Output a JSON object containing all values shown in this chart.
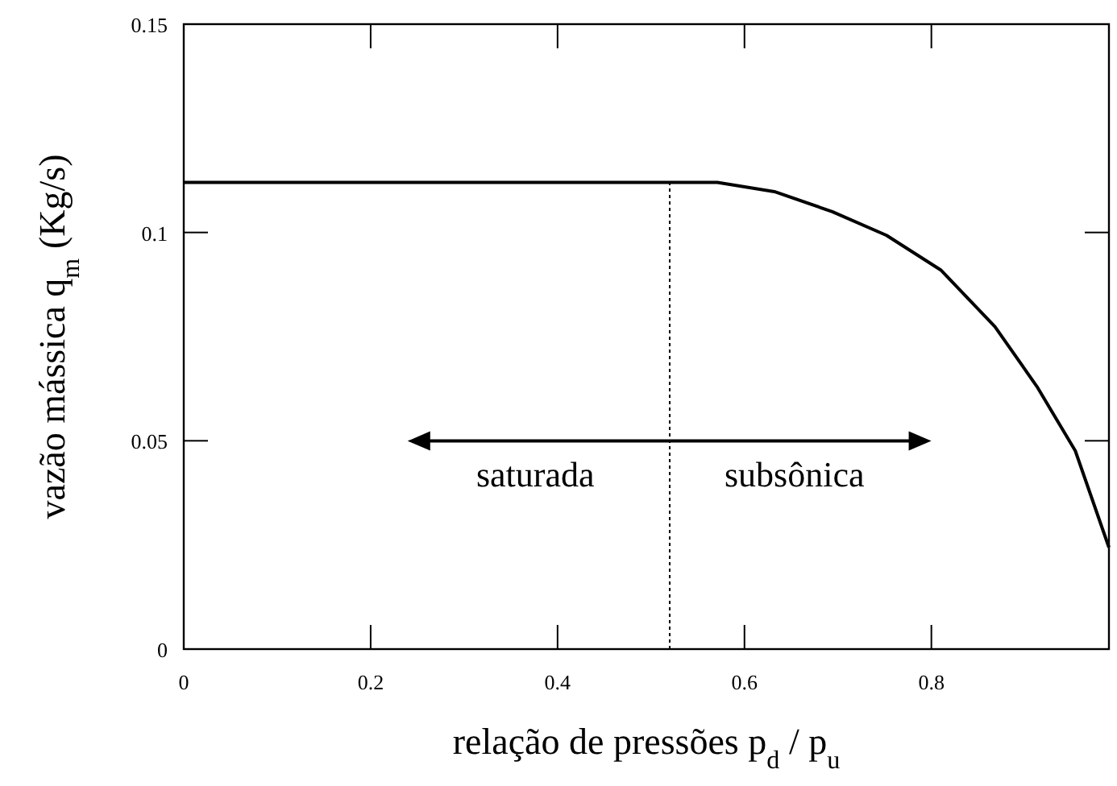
{
  "chart_data": {
    "type": "line",
    "xlabel": "relação de pressões p$_{d}$ / p$_{u}$",
    "ylabel": "vazão mássica q$_{m}$ (Kg/s)",
    "x": [
      0,
      0.52,
      0.571,
      0.632,
      0.694,
      0.752,
      0.81,
      0.868,
      0.913,
      0.954,
      0.99
    ],
    "series": [
      {
        "color": "#000000",
        "values": [
          0.112,
          0.112,
          0.112,
          0.1098,
          0.105,
          0.0993,
          0.091,
          0.0774,
          0.063,
          0.0476,
          0.0244
        ]
      }
    ],
    "xlim": [
      0,
      0.99
    ],
    "ylim": [
      0,
      0.15
    ],
    "xticks": [
      0,
      0.2,
      0.4,
      0.6,
      0.8
    ],
    "yticks": [
      0,
      0.05,
      0.1,
      0.15
    ],
    "grid": false,
    "marker": "none",
    "line_style": "solid",
    "ref_lines": [
      {
        "axis": "x",
        "value": 0.52,
        "color": "#000000",
        "line_style": "dotted"
      }
    ],
    "annotations": [
      "saturada",
      "subsônica"
    ]
  }
}
